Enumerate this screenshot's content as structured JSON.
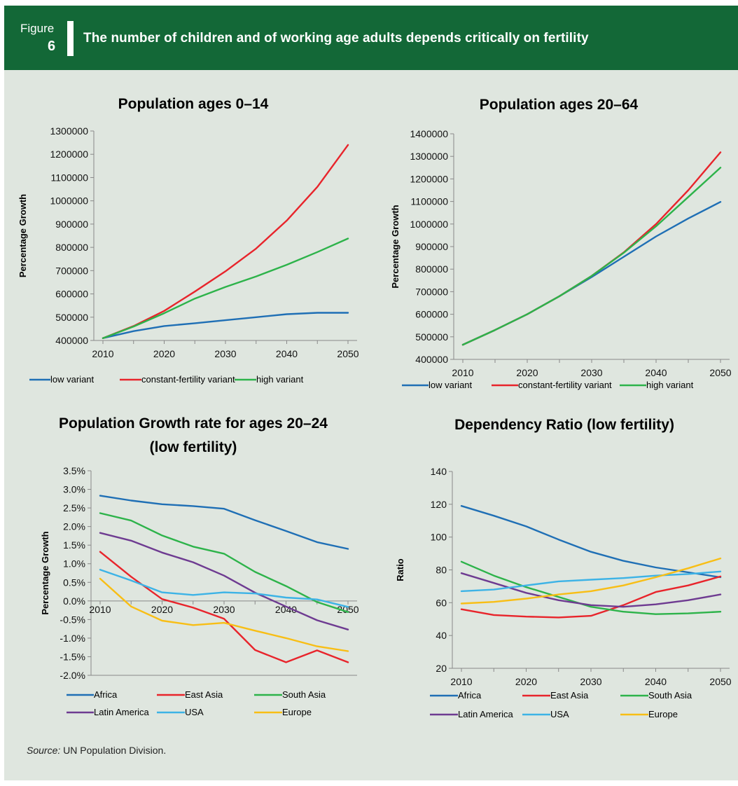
{
  "figure": {
    "label": "Figure",
    "number": "6",
    "title": "The number of children and of working age adults depends critically on fertility"
  },
  "source": {
    "prefix": "Source:",
    "text": " UN Population Division."
  },
  "colors": {
    "header_bg": "#136837",
    "panel_bg": "#dfe6df",
    "low variant": "#1f6fb5",
    "constant-fertility variant": "#e8242b",
    "high variant": "#2db34a",
    "Africa": "#1f6fb5",
    "East Asia": "#e8242b",
    "South Asia": "#2db34a",
    "Latin America": "#6e3b91",
    "USA": "#3db3e6",
    "Europe": "#f8be15"
  },
  "chart_data": [
    {
      "type": "line",
      "title": [
        "Population ages 0–14"
      ],
      "ylabel": "Percentage  Growth",
      "xlabel": "",
      "ylim": [
        400000,
        1300000
      ],
      "yticks": [
        "400000",
        "500000",
        "600000",
        "700000",
        "800000",
        "900000",
        "1000000",
        "1100000",
        "1200000",
        "1300000"
      ],
      "xticks": [
        "2010",
        "2020",
        "2030",
        "2040",
        "2050"
      ],
      "x": [
        2010,
        2015,
        2020,
        2025,
        2030,
        2035,
        2040,
        2045,
        2050
      ],
      "legend_rows": [
        [
          "low variant",
          "constant-fertility variant",
          "high variant"
        ]
      ],
      "series": [
        {
          "name": "low variant",
          "values": [
            410000,
            440000,
            462000,
            474000,
            487000,
            500000,
            513000,
            519000,
            519000
          ]
        },
        {
          "name": "constant-fertility variant",
          "values": [
            410000,
            462000,
            527000,
            610000,
            697000,
            795000,
            915000,
            1060000,
            1240000
          ]
        },
        {
          "name": "high variant",
          "values": [
            410000,
            460000,
            517000,
            580000,
            630000,
            675000,
            725000,
            780000,
            838000
          ]
        }
      ]
    },
    {
      "type": "line",
      "title": [
        "Population ages 20–64"
      ],
      "ylabel": "Percentage  Growth",
      "xlabel": "",
      "ylim": [
        400000,
        1400000
      ],
      "yticks": [
        "400000",
        "500000",
        "600000",
        "700000",
        "800000",
        "900000",
        "1000000",
        "1100000",
        "1200000",
        "1300000",
        "1400000"
      ],
      "xticks": [
        "2010",
        "2020",
        "2030",
        "2040",
        "2050"
      ],
      "x": [
        2010,
        2015,
        2020,
        2025,
        2030,
        2035,
        2040,
        2045,
        2050
      ],
      "legend_rows": [
        [
          "low variant",
          "constant-fertility variant",
          "high variant"
        ]
      ],
      "series": [
        {
          "name": "low variant",
          "values": [
            465000,
            530000,
            600000,
            680000,
            765000,
            855000,
            945000,
            1025000,
            1098000
          ]
        },
        {
          "name": "constant-fertility variant",
          "values": [
            465000,
            530000,
            600000,
            680000,
            770000,
            875000,
            1000000,
            1150000,
            1318000
          ]
        },
        {
          "name": "high variant",
          "values": [
            465000,
            530000,
            600000,
            680000,
            770000,
            873000,
            990000,
            1120000,
            1250000
          ]
        }
      ]
    },
    {
      "type": "line",
      "title": [
        "Population Growth rate for ages 20–24",
        "(low fertility)"
      ],
      "ylabel": "Percentage  Growth",
      "xlabel": "",
      "ylim": [
        -2.0,
        3.5
      ],
      "yticks": [
        "-2.0%",
        "-1.5%",
        "-1.0%",
        "-0.5%",
        "0.0%",
        "0.5%",
        "1.0%",
        "1.5%",
        "2.0%",
        "2.5%",
        "3.0%",
        "3.5%"
      ],
      "xticks": [
        "2010",
        "2020",
        "2030",
        "2040",
        "2050"
      ],
      "x": [
        2010,
        2015,
        2020,
        2025,
        2030,
        2035,
        2040,
        2045,
        2050
      ],
      "legend_rows": [
        [
          "Africa",
          "East Asia",
          "South Asia"
        ],
        [
          "Latin America",
          "USA",
          "Europe"
        ]
      ],
      "series": [
        {
          "name": "Africa",
          "values": [
            2.83,
            2.7,
            2.6,
            2.55,
            2.48,
            2.17,
            1.88,
            1.58,
            1.4
          ]
        },
        {
          "name": "East Asia",
          "values": [
            1.32,
            0.65,
            0.05,
            -0.18,
            -0.48,
            -1.32,
            -1.65,
            -1.33,
            -1.65
          ]
        },
        {
          "name": "South Asia",
          "values": [
            2.36,
            2.16,
            1.76,
            1.46,
            1.27,
            0.78,
            0.4,
            -0.03,
            -0.3
          ]
        },
        {
          "name": "Latin America",
          "values": [
            1.83,
            1.62,
            1.3,
            1.04,
            0.68,
            0.22,
            -0.15,
            -0.52,
            -0.77
          ]
        },
        {
          "name": "USA",
          "values": [
            0.84,
            0.55,
            0.23,
            0.16,
            0.23,
            0.2,
            0.09,
            0.04,
            -0.16
          ]
        },
        {
          "name": "Europe",
          "values": [
            0.6,
            -0.15,
            -0.53,
            -0.65,
            -0.59,
            -0.8,
            -1.0,
            -1.22,
            -1.35
          ]
        }
      ]
    },
    {
      "type": "line",
      "title": [
        "Dependency Ratio (low fertility)"
      ],
      "ylabel": "Ratio",
      "xlabel": "",
      "ylim": [
        20,
        140
      ],
      "yticks": [
        "20",
        "40",
        "60",
        "80",
        "100",
        "120",
        "140"
      ],
      "xticks": [
        "2010",
        "2020",
        "2030",
        "2040",
        "2050"
      ],
      "x": [
        2010,
        2015,
        2020,
        2025,
        2030,
        2035,
        2040,
        2045,
        2050
      ],
      "legend_rows": [
        [
          "Africa",
          "East Asia",
          "South Asia"
        ],
        [
          "Latin America",
          "USA",
          "Europe"
        ]
      ],
      "series": [
        {
          "name": "Africa",
          "values": [
            119,
            113,
            106.5,
            98.5,
            91,
            85.5,
            81.5,
            78.5,
            75.5
          ]
        },
        {
          "name": "East Asia",
          "values": [
            56,
            52.5,
            51.5,
            51,
            52,
            58.5,
            66.5,
            70.5,
            76
          ]
        },
        {
          "name": "South Asia",
          "values": [
            85,
            76.5,
            69.5,
            63.5,
            57.5,
            54.5,
            53,
            53.5,
            54.5
          ]
        },
        {
          "name": "Latin America",
          "values": [
            78,
            72,
            66,
            61.5,
            58.5,
            57.5,
            59,
            61.5,
            65
          ]
        },
        {
          "name": "USA",
          "values": [
            67,
            68,
            70.5,
            73,
            74,
            75,
            76.5,
            77.5,
            79
          ]
        },
        {
          "name": "Europe",
          "values": [
            59.5,
            60.5,
            62.5,
            65,
            67,
            70.5,
            75.5,
            81,
            87
          ]
        }
      ]
    }
  ]
}
